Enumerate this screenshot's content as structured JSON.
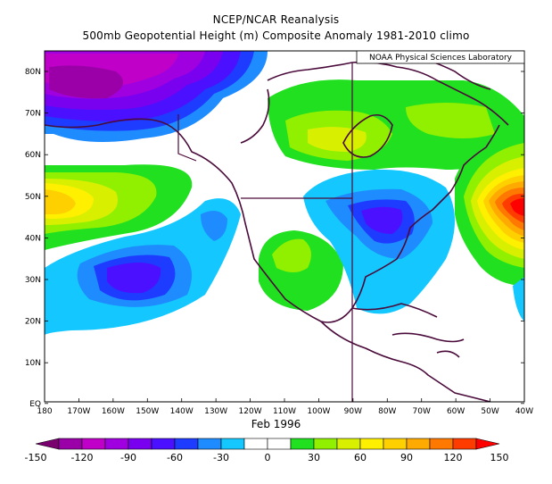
{
  "title_line1": "NCEP/NCAR Reanalysis",
  "title_line2": "500mb Geopotential Height (m) Composite Anomaly 1981-2010 climo",
  "credit": "NOAA Physical Sciences Laboratory",
  "date_label": "Feb 1996",
  "lat_labels": [
    "80N",
    "70N",
    "60N",
    "50N",
    "40N",
    "30N",
    "20N",
    "10N",
    "EQ"
  ],
  "lon_labels": [
    "180",
    "170W",
    "160W",
    "150W",
    "140W",
    "130W",
    "120W",
    "110W",
    "100W",
    "90W",
    "80W",
    "70W",
    "60W",
    "50W",
    "40W"
  ],
  "colorbar": {
    "ticks": [
      "-150",
      "-120",
      "-90",
      "-60",
      "-30",
      "0",
      "30",
      "60",
      "90",
      "120",
      "150"
    ],
    "colors": [
      "#7a0070",
      "#9b00a8",
      "#c000c8",
      "#a000e0",
      "#7a00f0",
      "#4b10ff",
      "#1e3cff",
      "#1e8cff",
      "#14c8ff",
      "#ffffff",
      "#ffffff",
      "#20e020",
      "#90f000",
      "#d8f000",
      "#fff000",
      "#ffd000",
      "#ffaa00",
      "#ff7800",
      "#ff3c00",
      "#ff0000"
    ]
  },
  "colors": {
    "coast": "#4a0a3a",
    "frame": "#000000"
  }
}
